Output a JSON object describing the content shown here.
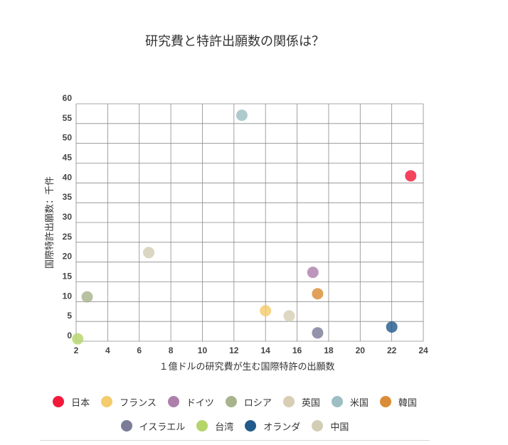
{
  "chart_data": {
    "type": "scatter",
    "title": "研究費と特許出願数の関係は？",
    "xlabel": "１億ドルの研究費が生む国際特許の出願数",
    "ylabel": "国際特許出願数：千件",
    "xlim": [
      2,
      24
    ],
    "ylim": [
      0,
      60
    ],
    "x_ticks": [
      2,
      4,
      6,
      8,
      10,
      12,
      14,
      16,
      18,
      20,
      22,
      24
    ],
    "y_ticks": [
      0,
      5,
      10,
      15,
      20,
      25,
      30,
      35,
      40,
      45,
      50,
      55,
      60
    ],
    "grid": true,
    "legend_position": "bottom",
    "series": [
      {
        "name": "日本",
        "color": "#f21a3c",
        "x": 23.2,
        "y": 41.8
      },
      {
        "name": "フランス",
        "color": "#f4cc6c",
        "x": 14.0,
        "y": 7.7
      },
      {
        "name": "ドイツ",
        "color": "#ad80ac",
        "x": 17.0,
        "y": 17.4
      },
      {
        "name": "ロシア",
        "color": "#a8b38d",
        "x": 2.7,
        "y": 11.2
      },
      {
        "name": "英国",
        "color": "#d7ceb5",
        "x": 15.5,
        "y": 6.4
      },
      {
        "name": "米国",
        "color": "#9dbec2",
        "x": 12.5,
        "y": 57.1
      },
      {
        "name": "韓国",
        "color": "#d98d36",
        "x": 17.3,
        "y": 12.0
      },
      {
        "name": "イスラエル",
        "color": "#7b7c97",
        "x": 17.3,
        "y": 2.1
      },
      {
        "name": "台湾",
        "color": "#b5d56a",
        "x": 2.1,
        "y": 0.6
      },
      {
        "name": "オランダ",
        "color": "#225b8c",
        "x": 22.0,
        "y": 3.6
      },
      {
        "name": "中国",
        "color": "#d3cdb6",
        "x": 6.6,
        "y": 22.4
      }
    ]
  },
  "legend_rows": [
    [
      0,
      1,
      2,
      3,
      4,
      5,
      6
    ],
    [
      7,
      8,
      9,
      10
    ]
  ]
}
